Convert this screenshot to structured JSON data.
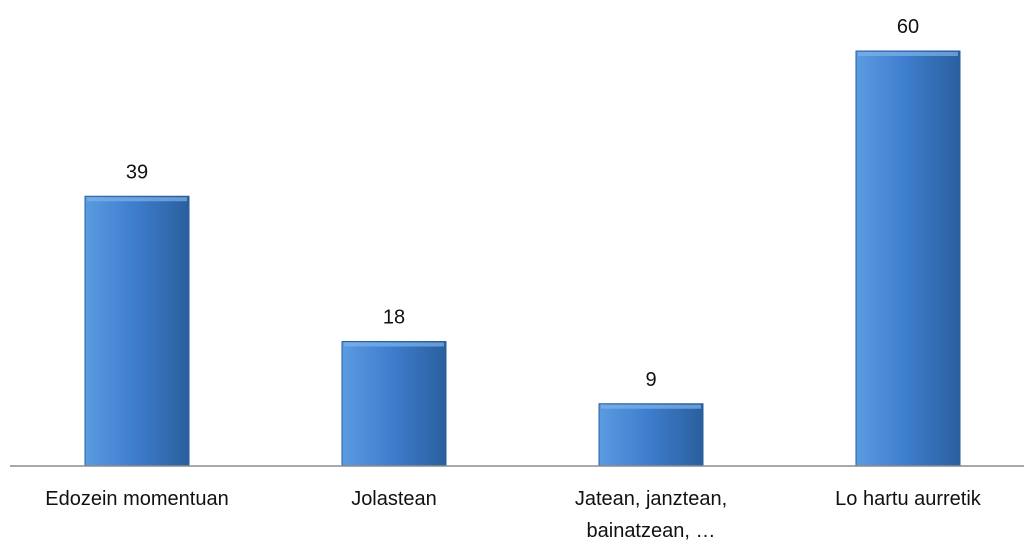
{
  "chart_data": {
    "type": "bar",
    "categories": [
      [
        "Edozein momentuan"
      ],
      [
        "Jolastean"
      ],
      [
        "Jatean, janztean,",
        "bainatzean, …"
      ],
      [
        "Lo hartu aurretik"
      ]
    ],
    "values": [
      39,
      18,
      9,
      60
    ],
    "title": "",
    "xlabel": "",
    "ylabel": "",
    "ylim": [
      0,
      66
    ],
    "grid": false,
    "legend": "none",
    "colors": {
      "bar_light": "#5b9be0",
      "bar_mid": "#3f7fcf",
      "bar_dark": "#2a5f9e",
      "axis": "#8c8c8c"
    }
  }
}
